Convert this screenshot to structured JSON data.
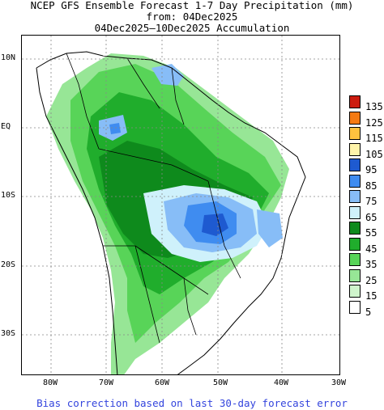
{
  "title": {
    "line1": "NCEP GFS Ensemble Forecast 1-7 Day Precipitation (mm)",
    "line2": "from: 04Dec2025",
    "line3": "04Dec2025–10Dec2025 Accumulation"
  },
  "axes": {
    "lat_labels": [
      "10N",
      "EQ",
      "10S",
      "20S",
      "30S"
    ],
    "lon_labels": [
      "80W",
      "70W",
      "60W",
      "50W",
      "40W",
      "30W"
    ]
  },
  "legend": {
    "items": [
      {
        "label": "135",
        "color": "#cc1c10"
      },
      {
        "label": "125",
        "color": "#f57a12"
      },
      {
        "label": "115",
        "color": "#ffc23f"
      },
      {
        "label": "105",
        "color": "#fff4aa"
      },
      {
        "label": "95",
        "color": "#1e5ad0"
      },
      {
        "label": "85",
        "color": "#3f8cf0"
      },
      {
        "label": "75",
        "color": "#87bdf7"
      },
      {
        "label": "65",
        "color": "#cff1fb"
      },
      {
        "label": "55",
        "color": "#0e8a1c"
      },
      {
        "label": "45",
        "color": "#20ad2c"
      },
      {
        "label": "35",
        "color": "#58d458"
      },
      {
        "label": "25",
        "color": "#97e696"
      },
      {
        "label": "15",
        "color": "#cff5cc"
      },
      {
        "label": "5",
        "color": "#ffffff"
      }
    ]
  },
  "footer": {
    "note": "Bias correction based on last 30-day forecast error"
  }
}
